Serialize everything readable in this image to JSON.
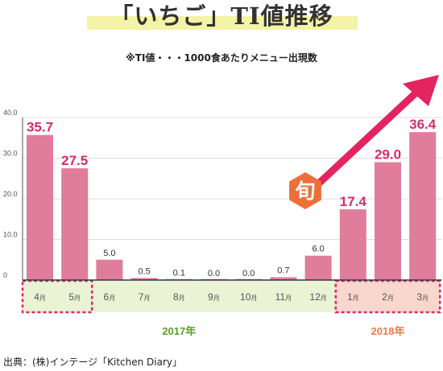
{
  "title": "「いちご」TI値推移",
  "subtitle": "※TI値・・・1000食あたりメニュー出現数",
  "badge": "旬",
  "source": "出典：(株)インテージ「Kitchen Diary」",
  "colors": {
    "bar": "#e07c9c",
    "value_label_big": "#d42e6b",
    "value_label_small": "#333333",
    "arrow": "#e4245e",
    "badge": "#ee6f3a",
    "band_2017": "#eaf3d4",
    "band_2018": "#f9d7cc",
    "dotted_box": "#e0286a",
    "year_2017": "#5a9e2a",
    "year_2018": "#f07a4a",
    "axis": "#555555",
    "grid": "#dddddd"
  },
  "chart_data": {
    "type": "bar",
    "categories": [
      "4",
      "5",
      "6",
      "7",
      "8",
      "9",
      "10",
      "11",
      "12",
      "1",
      "2",
      "3"
    ],
    "month_suffix": "月",
    "values": [
      35.7,
      27.5,
      5.0,
      0.5,
      0.1,
      0.0,
      0.0,
      0.7,
      6.0,
      17.4,
      29.0,
      36.4
    ],
    "value_labels": [
      "35.7",
      "27.5",
      "5.0",
      "0.5",
      "0.1",
      "0.0",
      "0.0",
      "0.7",
      "6.0",
      "17.4",
      "29.0",
      "36.4"
    ],
    "highlight": [
      true,
      true,
      false,
      false,
      false,
      false,
      false,
      false,
      false,
      true,
      true,
      true
    ],
    "groups": [
      {
        "label": "2017年",
        "start": 0,
        "end": 8
      },
      {
        "label": "2018年",
        "start": 9,
        "end": 11
      }
    ],
    "ylim": [
      0,
      40
    ],
    "yticks": [
      "0",
      "10.0",
      "20.0",
      "30.0",
      "40.0"
    ],
    "grid": true
  }
}
